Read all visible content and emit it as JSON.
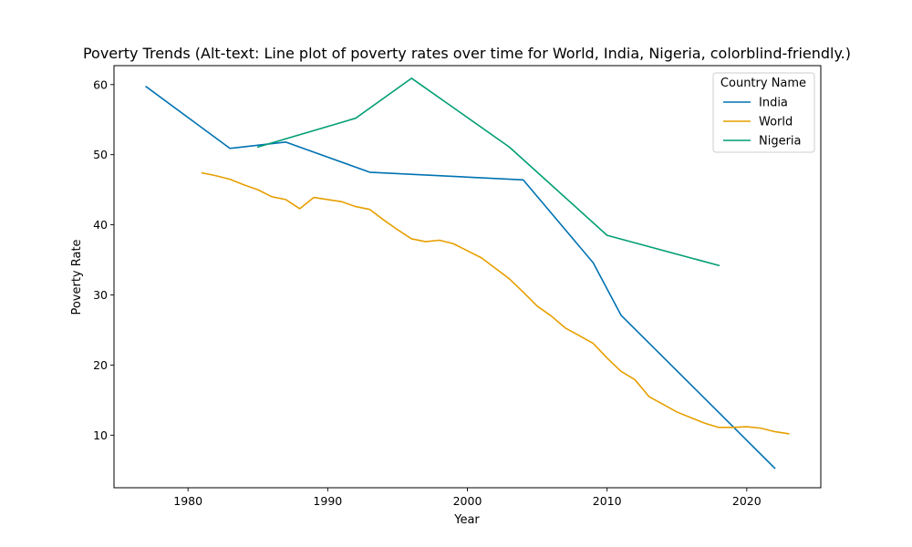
{
  "chart_data": {
    "type": "line",
    "title": "Poverty Trends (Alt-text: Line plot of poverty rates over time for World, India, Nigeria, colorblind-friendly.)",
    "xlabel": "Year",
    "ylabel": "Poverty Rate",
    "xlim": [
      1974.7,
      2025.3
    ],
    "ylim": [
      2.5,
      62.7
    ],
    "xticks": [
      1980,
      1990,
      2000,
      2010,
      2020
    ],
    "yticks": [
      10,
      20,
      30,
      40,
      50,
      60
    ],
    "grid": false,
    "legend": {
      "title": "Country Name",
      "placement": "top-right"
    },
    "series": [
      {
        "name": "India",
        "color": "#0072b2",
        "points": [
          [
            1977,
            59.7
          ],
          [
            1983,
            50.9
          ],
          [
            1987,
            51.8
          ],
          [
            1993,
            47.5
          ],
          [
            2004,
            46.4
          ],
          [
            2009,
            34.6
          ],
          [
            2011,
            27.1
          ],
          [
            2022,
            5.3
          ]
        ]
      },
      {
        "name": "World",
        "color": "#e69f00",
        "points": [
          [
            1981,
            47.4
          ],
          [
            1982,
            47.0
          ],
          [
            1983,
            46.5
          ],
          [
            1984,
            45.7
          ],
          [
            1985,
            45.0
          ],
          [
            1986,
            44.0
          ],
          [
            1987,
            43.6
          ],
          [
            1988,
            42.3
          ],
          [
            1989,
            43.9
          ],
          [
            1990,
            43.6
          ],
          [
            1991,
            43.3
          ],
          [
            1992,
            42.6
          ],
          [
            1993,
            42.2
          ],
          [
            1994,
            40.7
          ],
          [
            1995,
            39.3
          ],
          [
            1996,
            38.0
          ],
          [
            1997,
            37.6
          ],
          [
            1998,
            37.8
          ],
          [
            1999,
            37.3
          ],
          [
            2000,
            36.3
          ],
          [
            2001,
            35.3
          ],
          [
            2002,
            33.8
          ],
          [
            2003,
            32.3
          ],
          [
            2004,
            30.4
          ],
          [
            2005,
            28.4
          ],
          [
            2006,
            27.0
          ],
          [
            2007,
            25.3
          ],
          [
            2008,
            24.2
          ],
          [
            2009,
            23.1
          ],
          [
            2010,
            21.0
          ],
          [
            2011,
            19.1
          ],
          [
            2012,
            17.9
          ],
          [
            2013,
            15.5
          ],
          [
            2014,
            14.4
          ],
          [
            2015,
            13.3
          ],
          [
            2016,
            12.5
          ],
          [
            2017,
            11.7
          ],
          [
            2018,
            11.1
          ],
          [
            2019,
            11.1
          ],
          [
            2020,
            11.2
          ],
          [
            2021,
            11.0
          ],
          [
            2022,
            10.5
          ],
          [
            2023,
            10.2
          ]
        ]
      },
      {
        "name": "Nigeria",
        "color": "#009e73",
        "points": [
          [
            1985,
            51.1
          ],
          [
            1992,
            55.2
          ],
          [
            1996,
            60.9
          ],
          [
            2003,
            51.1
          ],
          [
            2010,
            38.5
          ],
          [
            2018,
            34.2
          ]
        ]
      }
    ]
  }
}
